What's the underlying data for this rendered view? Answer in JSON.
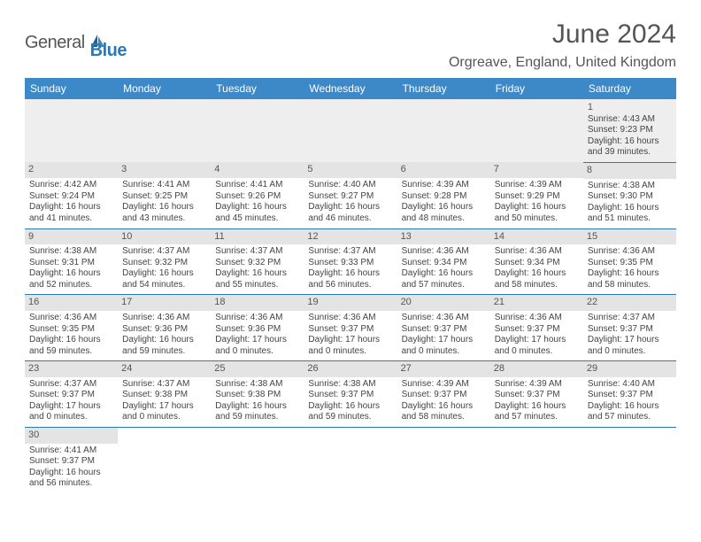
{
  "logo": {
    "text1": "General",
    "text2": "Blue"
  },
  "title": "June 2024",
  "location": "Orgreave, England, United Kingdom",
  "colors": {
    "header_bg": "#3d88c7",
    "header_text": "#ffffff",
    "border": "#2a7ab8",
    "daynum_bg": "#e4e4e4",
    "first_row_bg": "#eeeeee",
    "text": "#444444",
    "title_color": "#555555"
  },
  "dayNames": [
    "Sunday",
    "Monday",
    "Tuesday",
    "Wednesday",
    "Thursday",
    "Friday",
    "Saturday"
  ],
  "weeks": [
    [
      null,
      null,
      null,
      null,
      null,
      null,
      {
        "d": "1",
        "sr": "Sunrise: 4:43 AM",
        "ss": "Sunset: 9:23 PM",
        "dl1": "Daylight: 16 hours",
        "dl2": "and 39 minutes."
      }
    ],
    [
      {
        "d": "2",
        "sr": "Sunrise: 4:42 AM",
        "ss": "Sunset: 9:24 PM",
        "dl1": "Daylight: 16 hours",
        "dl2": "and 41 minutes."
      },
      {
        "d": "3",
        "sr": "Sunrise: 4:41 AM",
        "ss": "Sunset: 9:25 PM",
        "dl1": "Daylight: 16 hours",
        "dl2": "and 43 minutes."
      },
      {
        "d": "4",
        "sr": "Sunrise: 4:41 AM",
        "ss": "Sunset: 9:26 PM",
        "dl1": "Daylight: 16 hours",
        "dl2": "and 45 minutes."
      },
      {
        "d": "5",
        "sr": "Sunrise: 4:40 AM",
        "ss": "Sunset: 9:27 PM",
        "dl1": "Daylight: 16 hours",
        "dl2": "and 46 minutes."
      },
      {
        "d": "6",
        "sr": "Sunrise: 4:39 AM",
        "ss": "Sunset: 9:28 PM",
        "dl1": "Daylight: 16 hours",
        "dl2": "and 48 minutes."
      },
      {
        "d": "7",
        "sr": "Sunrise: 4:39 AM",
        "ss": "Sunset: 9:29 PM",
        "dl1": "Daylight: 16 hours",
        "dl2": "and 50 minutes."
      },
      {
        "d": "8",
        "sr": "Sunrise: 4:38 AM",
        "ss": "Sunset: 9:30 PM",
        "dl1": "Daylight: 16 hours",
        "dl2": "and 51 minutes."
      }
    ],
    [
      {
        "d": "9",
        "sr": "Sunrise: 4:38 AM",
        "ss": "Sunset: 9:31 PM",
        "dl1": "Daylight: 16 hours",
        "dl2": "and 52 minutes."
      },
      {
        "d": "10",
        "sr": "Sunrise: 4:37 AM",
        "ss": "Sunset: 9:32 PM",
        "dl1": "Daylight: 16 hours",
        "dl2": "and 54 minutes."
      },
      {
        "d": "11",
        "sr": "Sunrise: 4:37 AM",
        "ss": "Sunset: 9:32 PM",
        "dl1": "Daylight: 16 hours",
        "dl2": "and 55 minutes."
      },
      {
        "d": "12",
        "sr": "Sunrise: 4:37 AM",
        "ss": "Sunset: 9:33 PM",
        "dl1": "Daylight: 16 hours",
        "dl2": "and 56 minutes."
      },
      {
        "d": "13",
        "sr": "Sunrise: 4:36 AM",
        "ss": "Sunset: 9:34 PM",
        "dl1": "Daylight: 16 hours",
        "dl2": "and 57 minutes."
      },
      {
        "d": "14",
        "sr": "Sunrise: 4:36 AM",
        "ss": "Sunset: 9:34 PM",
        "dl1": "Daylight: 16 hours",
        "dl2": "and 58 minutes."
      },
      {
        "d": "15",
        "sr": "Sunrise: 4:36 AM",
        "ss": "Sunset: 9:35 PM",
        "dl1": "Daylight: 16 hours",
        "dl2": "and 58 minutes."
      }
    ],
    [
      {
        "d": "16",
        "sr": "Sunrise: 4:36 AM",
        "ss": "Sunset: 9:35 PM",
        "dl1": "Daylight: 16 hours",
        "dl2": "and 59 minutes."
      },
      {
        "d": "17",
        "sr": "Sunrise: 4:36 AM",
        "ss": "Sunset: 9:36 PM",
        "dl1": "Daylight: 16 hours",
        "dl2": "and 59 minutes."
      },
      {
        "d": "18",
        "sr": "Sunrise: 4:36 AM",
        "ss": "Sunset: 9:36 PM",
        "dl1": "Daylight: 17 hours",
        "dl2": "and 0 minutes."
      },
      {
        "d": "19",
        "sr": "Sunrise: 4:36 AM",
        "ss": "Sunset: 9:37 PM",
        "dl1": "Daylight: 17 hours",
        "dl2": "and 0 minutes."
      },
      {
        "d": "20",
        "sr": "Sunrise: 4:36 AM",
        "ss": "Sunset: 9:37 PM",
        "dl1": "Daylight: 17 hours",
        "dl2": "and 0 minutes."
      },
      {
        "d": "21",
        "sr": "Sunrise: 4:36 AM",
        "ss": "Sunset: 9:37 PM",
        "dl1": "Daylight: 17 hours",
        "dl2": "and 0 minutes."
      },
      {
        "d": "22",
        "sr": "Sunrise: 4:37 AM",
        "ss": "Sunset: 9:37 PM",
        "dl1": "Daylight: 17 hours",
        "dl2": "and 0 minutes."
      }
    ],
    [
      {
        "d": "23",
        "sr": "Sunrise: 4:37 AM",
        "ss": "Sunset: 9:37 PM",
        "dl1": "Daylight: 17 hours",
        "dl2": "and 0 minutes."
      },
      {
        "d": "24",
        "sr": "Sunrise: 4:37 AM",
        "ss": "Sunset: 9:38 PM",
        "dl1": "Daylight: 17 hours",
        "dl2": "and 0 minutes."
      },
      {
        "d": "25",
        "sr": "Sunrise: 4:38 AM",
        "ss": "Sunset: 9:38 PM",
        "dl1": "Daylight: 16 hours",
        "dl2": "and 59 minutes."
      },
      {
        "d": "26",
        "sr": "Sunrise: 4:38 AM",
        "ss": "Sunset: 9:37 PM",
        "dl1": "Daylight: 16 hours",
        "dl2": "and 59 minutes."
      },
      {
        "d": "27",
        "sr": "Sunrise: 4:39 AM",
        "ss": "Sunset: 9:37 PM",
        "dl1": "Daylight: 16 hours",
        "dl2": "and 58 minutes."
      },
      {
        "d": "28",
        "sr": "Sunrise: 4:39 AM",
        "ss": "Sunset: 9:37 PM",
        "dl1": "Daylight: 16 hours",
        "dl2": "and 57 minutes."
      },
      {
        "d": "29",
        "sr": "Sunrise: 4:40 AM",
        "ss": "Sunset: 9:37 PM",
        "dl1": "Daylight: 16 hours",
        "dl2": "and 57 minutes."
      }
    ],
    [
      {
        "d": "30",
        "sr": "Sunrise: 4:41 AM",
        "ss": "Sunset: 9:37 PM",
        "dl1": "Daylight: 16 hours",
        "dl2": "and 56 minutes."
      },
      null,
      null,
      null,
      null,
      null,
      null
    ]
  ]
}
